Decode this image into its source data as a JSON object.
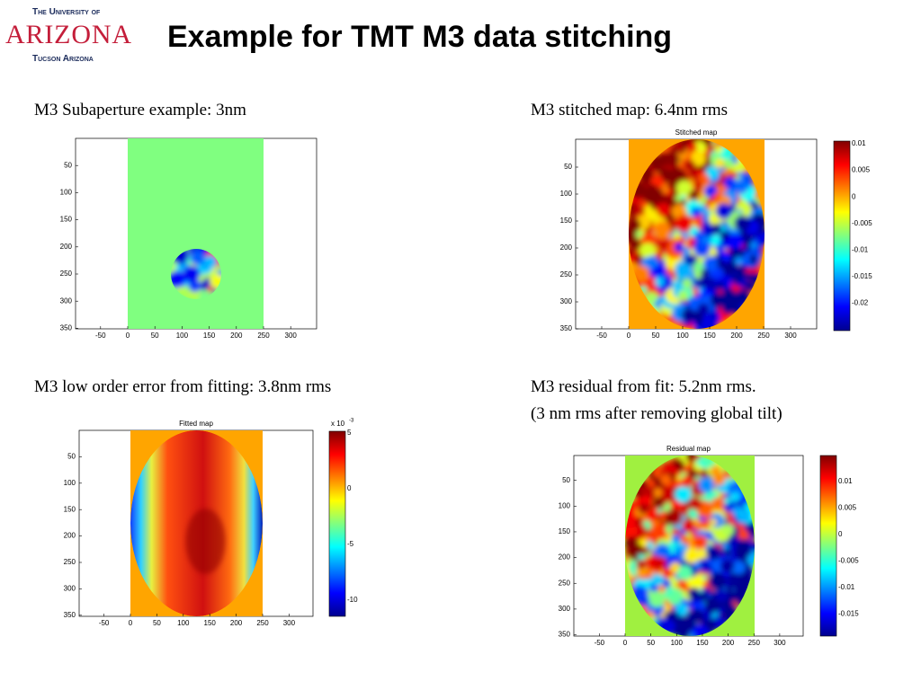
{
  "header": {
    "logo": {
      "line1": "The University of",
      "name": "ARIZONA",
      "line3": "Tucson Arizona"
    },
    "title": "Example for TMT M3 data stitching"
  },
  "panels": [
    {
      "caption": [
        "M3 Subaperture example: 3nm"
      ],
      "xticks": [
        "-50",
        "0",
        "50",
        "100",
        "150",
        "200",
        "250",
        "300"
      ],
      "yticks": [
        "50",
        "100",
        "150",
        "200",
        "250",
        "300",
        "350"
      ]
    },
    {
      "caption": [
        "M3 stitched map: 6.4nm rms"
      ],
      "plot_title": "Stitched map",
      "xticks": [
        "-50",
        "0",
        "50",
        "100",
        "150",
        "200",
        "250",
        "300"
      ],
      "yticks": [
        "50",
        "100",
        "150",
        "200",
        "250",
        "300",
        "350"
      ],
      "colorbar": [
        "0.01",
        "0.005",
        "0",
        "-0.005",
        "-0.01",
        "-0.015",
        "-0.02"
      ]
    },
    {
      "caption": [
        "M3 low order error from fitting: 3.8nm rms"
      ],
      "plot_title": "Fitted map",
      "xticks": [
        "-50",
        "0",
        "50",
        "100",
        "150",
        "200",
        "250",
        "300"
      ],
      "yticks": [
        "50",
        "100",
        "150",
        "200",
        "250",
        "300",
        "350"
      ],
      "colorbar": [
        "5",
        "0",
        "-5",
        "-10"
      ],
      "colorbar_scale": {
        "base": "x 10",
        "exponent": "-3"
      }
    },
    {
      "caption": [
        "M3 residual from fit: 5.2nm rms.",
        "(3 nm rms after removing global tilt)"
      ],
      "plot_title": "Residual map",
      "xticks": [
        "-50",
        "0",
        "50",
        "100",
        "150",
        "200",
        "250",
        "300"
      ],
      "yticks": [
        "50",
        "100",
        "150",
        "200",
        "250",
        "300",
        "350"
      ],
      "colorbar": [
        "0.01",
        "0.005",
        "0",
        "-0.005",
        "-0.01",
        "-0.015"
      ]
    }
  ]
}
